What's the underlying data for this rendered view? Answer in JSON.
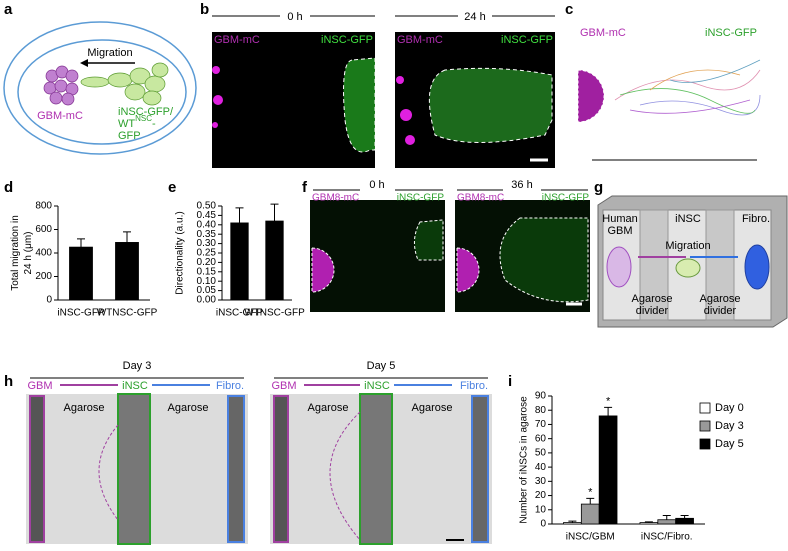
{
  "panels": {
    "a": {
      "letter": "a",
      "migration": "Migration",
      "gbm": "GBM-mC",
      "insc": "iNSC-GFP/",
      "wt": "WT",
      "wt_sup": "NSC",
      "wt_dash": "-",
      "gfp": "GFP"
    },
    "b": {
      "letter": "b",
      "frames": [
        {
          "time": "0 h",
          "left": "GBM-mC",
          "right": "iNSC-GFP"
        },
        {
          "time": "24 h",
          "left": "GBM-mC",
          "right": "iNSC-GFP"
        }
      ]
    },
    "c": {
      "letter": "c",
      "left": "GBM-mC",
      "right": "iNSC-GFP"
    },
    "d": {
      "letter": "d"
    },
    "e": {
      "letter": "e"
    },
    "f": {
      "letter": "f",
      "frames": [
        {
          "time": "0 h",
          "left": "GBM8-mC",
          "right": "iNSC-GFP"
        },
        {
          "time": "36 h",
          "left": "GBM8-mC",
          "right": "iNSC-GFP"
        }
      ]
    },
    "g": {
      "letter": "g",
      "human": "Human",
      "gbm": "GBM",
      "insc": "iNSC",
      "fibro": "Fibro.",
      "migration": "Migration",
      "divider1": "Agarose",
      "divider1b": "divider",
      "divider2": "Agarose",
      "divider2b": "divider"
    },
    "h": {
      "letter": "h",
      "frames": [
        {
          "day": "Day 3",
          "gbm": "GBM",
          "insc": "iNSC",
          "fibro": "Fibro.",
          "agarose1": "Agarose",
          "agarose2": "Agarose"
        },
        {
          "day": "Day 5",
          "gbm": "GBM",
          "insc": "iNSC",
          "fibro": "Fibro.",
          "agarose1": "Agarose",
          "agarose2": "Agarose"
        }
      ]
    },
    "i": {
      "letter": "i"
    }
  },
  "chart_data": [
    {
      "type": "bar",
      "ylabel": [
        "Total migration in",
        "24 h (μm)"
      ],
      "categories": [
        "iNSC-GFP",
        "WTNSC-GFP"
      ],
      "values": [
        450,
        490
      ],
      "errors": [
        70,
        90
      ],
      "color": "#000000",
      "ylim": [
        0,
        800
      ],
      "yticks": [
        0,
        200,
        400,
        600,
        800
      ]
    },
    {
      "type": "bar",
      "ylabel": [
        "Directionality (a.u.)"
      ],
      "categories": [
        "iNSC-GFP",
        "WTNSC-GFP"
      ],
      "values": [
        0.41,
        0.42
      ],
      "errors": [
        0.08,
        0.09
      ],
      "color": "#000000",
      "ylim": [
        0,
        0.5
      ],
      "yticks": [
        {
          "value": 0,
          "label": "0.00"
        },
        {
          "value": 0.05,
          "label": "0.05"
        },
        {
          "value": 0.1,
          "label": "0.10"
        },
        {
          "value": 0.15,
          "label": "0.15"
        },
        {
          "value": 0.2,
          "label": "0.20"
        },
        {
          "value": 0.25,
          "label": "0.25"
        },
        {
          "value": 0.3,
          "label": "0.30"
        },
        {
          "value": 0.35,
          "label": "0.35"
        },
        {
          "value": 0.4,
          "label": "0.40"
        },
        {
          "value": 0.45,
          "label": "0.45"
        },
        {
          "value": 0.5,
          "label": "0.50"
        }
      ]
    },
    {
      "type": "bar",
      "ylabel": [
        "Number of iNSCs in agarose"
      ],
      "categories": [
        "iNSC/GBM",
        "iNSC/Fibro."
      ],
      "series": [
        {
          "name": "Day 0",
          "color": "#ffffff",
          "values": [
            1,
            1
          ],
          "errors": [
            1,
            0.5
          ]
        },
        {
          "name": "Day 3",
          "color": "#999999",
          "values": [
            14,
            3
          ],
          "errors": [
            4,
            3
          ]
        },
        {
          "name": "Day 5",
          "color": "#000000",
          "values": [
            76,
            4
          ],
          "errors": [
            6,
            2
          ]
        }
      ],
      "annotations": [
        {
          "text": "*",
          "series": 1,
          "index": 0
        },
        {
          "text": "*",
          "series": 2,
          "index": 0
        }
      ],
      "legend": "upper right",
      "ylim": [
        0,
        90
      ],
      "yticks": [
        0,
        10,
        20,
        30,
        40,
        50,
        60,
        70,
        80,
        90
      ]
    }
  ]
}
